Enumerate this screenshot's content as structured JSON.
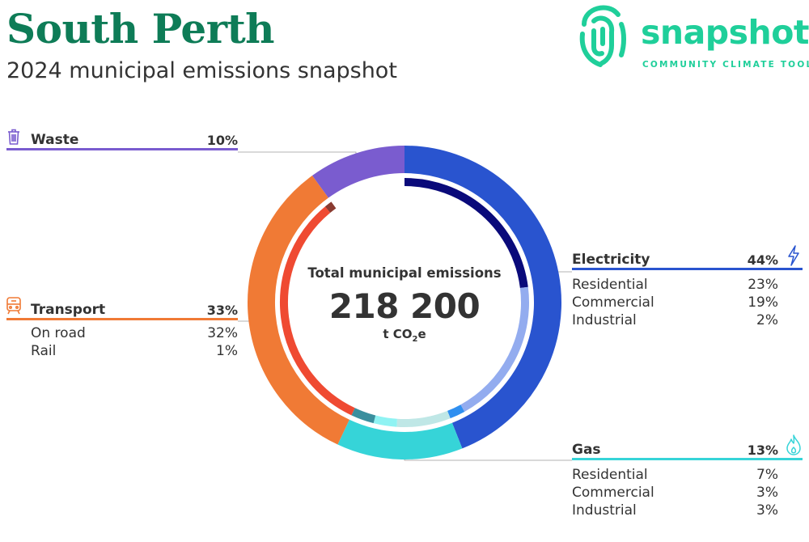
{
  "header": {
    "title": "South Perth",
    "subtitle": "2024 municipal emissions snapshot"
  },
  "logo": {
    "wordmark": "snapshot",
    "tagline": "COMMUNITY CLIMATE TOOL",
    "color": "#1fcf9a"
  },
  "center": {
    "label": "Total municipal emissions",
    "value": "218 200",
    "unit_prefix": "t CO",
    "unit_sub": "2",
    "unit_suffix": "e"
  },
  "sectors": {
    "waste": {
      "name": "Waste",
      "pct": "10%",
      "icon": "trash-bin-icon",
      "color": "#7a5ccf"
    },
    "transport": {
      "name": "Transport",
      "pct": "33%",
      "icon": "train-icon",
      "color": "#f07a35",
      "subs": [
        {
          "label": "On road",
          "value": "32%"
        },
        {
          "label": "Rail",
          "value": "1%"
        }
      ]
    },
    "electricity": {
      "name": "Electricity",
      "pct": "44%",
      "icon": "lightning-bolt-icon",
      "color": "#2954cf",
      "subs": [
        {
          "label": "Residential",
          "value": "23%"
        },
        {
          "label": "Commercial",
          "value": "19%"
        },
        {
          "label": "Industrial",
          "value": "2%"
        }
      ]
    },
    "gas": {
      "name": "Gas",
      "pct": "13%",
      "icon": "flame-icon",
      "color": "#36d4d8",
      "subs": [
        {
          "label": "Residential",
          "value": "7%"
        },
        {
          "label": "Commercial",
          "value": "3%"
        },
        {
          "label": "Industrial",
          "value": "3%"
        }
      ]
    }
  },
  "chart_data": {
    "type": "pie",
    "title": "2024 municipal emissions snapshot",
    "total": 218200,
    "unit": "t CO2e",
    "sectors": [
      {
        "name": "Electricity",
        "value": 44,
        "color": "#2954cf",
        "subs": [
          {
            "name": "Residential",
            "value": 23,
            "color": "#0a0a7a"
          },
          {
            "name": "Commercial",
            "value": 19,
            "color": "#93acef"
          },
          {
            "name": "Industrial",
            "value": 2,
            "color": "#2f8ff0"
          }
        ]
      },
      {
        "name": "Gas",
        "value": 13,
        "color": "#36d4d8",
        "subs": [
          {
            "name": "Residential",
            "value": 7,
            "color": "#bfe7e6"
          },
          {
            "name": "Commercial",
            "value": 3,
            "color": "#8ff3f3"
          },
          {
            "name": "Industrial",
            "value": 3,
            "color": "#3a8f9e"
          }
        ]
      },
      {
        "name": "Transport",
        "value": 33,
        "color": "#f07a35",
        "subs": [
          {
            "name": "On road",
            "value": 32,
            "color": "#ef4a32"
          },
          {
            "name": "Rail",
            "value": 1,
            "color": "#8a3a30"
          }
        ]
      },
      {
        "name": "Waste",
        "value": 10,
        "color": "#7a5ccf",
        "subs": []
      }
    ]
  }
}
